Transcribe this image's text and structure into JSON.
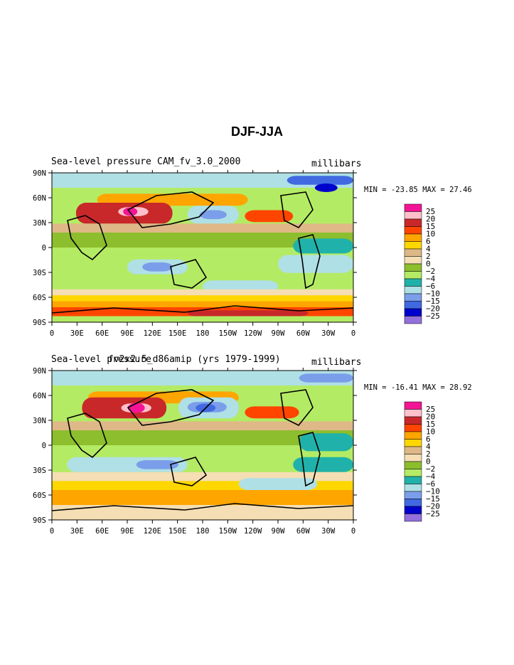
{
  "page_title": "DJF-JJA",
  "colors": {
    "levels": [
      "#f41496",
      "#ffc0cb",
      "#c8282a",
      "#ff4500",
      "#ffa500",
      "#ffd700",
      "#deb887",
      "#f5deb3",
      "#8cbe2d",
      "#b4eb64",
      "#20b2aa",
      "#afe0e6",
      "#7b9eea",
      "#4169e1",
      "#0000cd",
      "#9370db"
    ]
  },
  "legend_labels": [
    "25",
    "20",
    "15",
    "10",
    "6",
    "4",
    "2",
    "0",
    "-2",
    "-4",
    "-6",
    "-10",
    "-15",
    "-20",
    "-25"
  ],
  "x_ticks": [
    "0",
    "30E",
    "60E",
    "90E",
    "120E",
    "150E",
    "180",
    "150W",
    "120W",
    "90W",
    "60W",
    "30W",
    "0"
  ],
  "y_ticks": [
    "90N",
    "60N",
    "30N",
    "0",
    "30S",
    "60S",
    "90S"
  ],
  "panels": [
    {
      "title_left": "Sea-level pressure",
      "case": "CAM_fv_3.0_2000",
      "units": "millibars",
      "min_label": "MIN =",
      "min": "-23.85",
      "max_label": "MAX =",
      "max": "27.46"
    },
    {
      "title_left": "Sea-level pressure",
      "case": "fv2x2.5_d86amip (yrs 1979-1999)",
      "units": "millibars",
      "min_label": "MIN =",
      "min": "-16.41",
      "max_label": "MAX =",
      "max": "28.92"
    }
  ]
}
